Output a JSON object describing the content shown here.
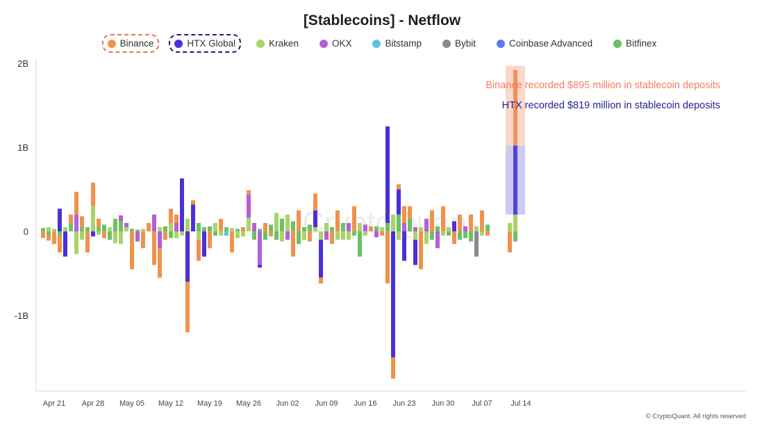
{
  "title": "[Stablecoins] - Netflow",
  "footer": "© CryptoQuant. All rights reserved",
  "watermark": "CryptoQuant",
  "legend": [
    {
      "name": "Binance",
      "color": "#f0924c",
      "highlight": true
    },
    {
      "name": "HTX Global",
      "color": "#4b2fd8",
      "highlight": true
    },
    {
      "name": "Kraken",
      "color": "#a8d468"
    },
    {
      "name": "OKX",
      "color": "#b45fd6"
    },
    {
      "name": "Bitstamp",
      "color": "#5bc3e0"
    },
    {
      "name": "Bybit",
      "color": "#8a8a8a"
    },
    {
      "name": "Coinbase Advanced",
      "color": "#5b7ee5"
    },
    {
      "name": "Bitfinex",
      "color": "#6cc064"
    }
  ],
  "annotations": [
    {
      "text": "Binance recorded $895 million in stablecoin deposits",
      "color": "#f07f5e"
    },
    {
      "text": "HTX recorded $819 million in stablecoin deposits",
      "color": "#23238f"
    }
  ],
  "chart_data": {
    "type": "bar",
    "stacked": true,
    "title": "[Stablecoins] - Netflow",
    "ylim": [
      -1.9,
      2.05
    ],
    "y_ticks": [
      {
        "value": 2,
        "label": "2B"
      },
      {
        "value": 1,
        "label": "1B"
      },
      {
        "value": 0,
        "label": "0"
      },
      {
        "value": -1,
        "label": "-1B"
      }
    ],
    "x_ticks": [
      "Apr 21",
      "Apr 28",
      "May 05",
      "May 12",
      "May 19",
      "May 26",
      "Jun 02",
      "Jun 09",
      "Jun 16",
      "Jun 23",
      "Jun 30",
      "Jul 07",
      "Jul 14"
    ],
    "series_order": [
      "Bitfinex",
      "Kraken",
      "OKX",
      "HTX Global",
      "Binance"
    ],
    "days": [
      {
        "d": "Apr 19",
        "Bitfinex": 0.04,
        "Binance": -0.08
      },
      {
        "d": "Apr 20",
        "Kraken": 0.05,
        "Bitfinex": -0.05,
        "Binance": -0.06
      },
      {
        "d": "Apr 21",
        "Kraken": 0.03,
        "Binance": -0.15
      },
      {
        "d": "Apr 22",
        "HTX Global": 0.27,
        "Bitfinex": -0.05,
        "Binance": -0.2
      },
      {
        "d": "Apr 23",
        "Kraken": 0.05,
        "HTX Global": -0.3
      },
      {
        "d": "Apr 24",
        "Bitfinex": 0.1,
        "Binance": 0.1
      },
      {
        "d": "Apr 25",
        "OKX": 0.2,
        "Binance": 0.27,
        "Kraken": -0.27
      },
      {
        "d": "Apr 26",
        "Bitfinex": 0.05,
        "Binance": 0.13,
        "Kraken": -0.1
      },
      {
        "d": "Apr 27",
        "Bitfinex": 0.05,
        "Binance": -0.25
      },
      {
        "d": "Apr 28",
        "Kraken": 0.3,
        "Binance": 0.28,
        "HTX Global": -0.06
      },
      {
        "d": "Apr 29",
        "Bitfinex": 0.05,
        "Binance": 0.1,
        "Kraken": -0.04
      },
      {
        "d": "Apr 30",
        "Bitfinex": 0.08,
        "Binance": -0.08
      },
      {
        "d": "May 01",
        "Kraken": 0.05,
        "Bitfinex": -0.1
      },
      {
        "d": "May 02",
        "Bitfinex": 0.15,
        "Kraken": -0.14
      },
      {
        "d": "May 03",
        "Bitfinex": 0.12,
        "OKX": 0.07,
        "Kraken": -0.15
      },
      {
        "d": "May 04",
        "Kraken": 0.05,
        "OKX": 0.05
      },
      {
        "d": "May 05",
        "Bitfinex": 0.03,
        "Binance": -0.45
      },
      {
        "d": "May 06",
        "Bitfinex": 0.02,
        "OKX": -0.12
      },
      {
        "d": "May 07",
        "Kraken": 0.03,
        "Binance": -0.2
      },
      {
        "d": "May 08",
        "Binance": 0.1
      },
      {
        "d": "May 09",
        "OKX": 0.2,
        "Binance": -0.4
      },
      {
        "d": "May 10",
        "Kraken": 0.05,
        "OKX": -0.2,
        "Binance": -0.35
      },
      {
        "d": "May 11",
        "Bitfinex": 0.06,
        "Binance": -0.1
      },
      {
        "d": "May 12",
        "Kraken": 0.1,
        "Binance": 0.17,
        "Bitfinex": -0.08
      },
      {
        "d": "May 13",
        "OKX": 0.1,
        "Binance": 0.1,
        "Kraken": -0.08
      },
      {
        "d": "May 14",
        "HTX Global": 0.63,
        "Kraken": -0.05
      },
      {
        "d": "May 15",
        "Kraken": 0.15,
        "HTX Global": -0.6,
        "Binance": -0.6
      },
      {
        "d": "May 16",
        "HTX Global": 0.32,
        "Binance": 0.05
      },
      {
        "d": "May 17",
        "Bitfinex": 0.1,
        "Kraken": -0.1,
        "Binance": -0.25
      },
      {
        "d": "May 18",
        "Bitfinex": 0.05,
        "HTX Global": -0.3
      },
      {
        "d": "May 19",
        "Bitfinex": 0.06,
        "Binance": -0.2
      },
      {
        "d": "May 20",
        "Kraken": 0.1,
        "Bitfinex": -0.05
      },
      {
        "d": "May 21",
        "Binance": 0.15,
        "Kraken": -0.05
      },
      {
        "d": "May 22",
        "Bitfinex": 0.05,
        "Bitstamp": -0.05
      },
      {
        "d": "May 23",
        "Kraken": 0.04,
        "Binance": -0.25
      },
      {
        "d": "May 24",
        "Bitfinex": 0.03,
        "Kraken": -0.08
      },
      {
        "d": "May 25",
        "Binance": 0.05,
        "Kraken": -0.06
      },
      {
        "d": "May 26",
        "OKX": 0.28,
        "Kraken": 0.16,
        "Binance": 0.05
      },
      {
        "d": "May 27",
        "OKX": 0.1,
        "Bitfinex": -0.1
      },
      {
        "d": "May 28",
        "Bitfinex": 0.03,
        "OKX": -0.4,
        "HTX Global": -0.03
      },
      {
        "d": "May 29",
        "Binance": 0.1,
        "Bitfinex": -0.1
      },
      {
        "d": "May 30",
        "Bitfinex": 0.08,
        "Binance": -0.06
      },
      {
        "d": "May 31",
        "Kraken": 0.22,
        "Bitfinex": -0.1
      },
      {
        "d": "Jun 01",
        "Bitfinex": 0.15,
        "Kraken": -0.12
      },
      {
        "d": "Jun 02",
        "Kraken": 0.2,
        "OKX": -0.1
      },
      {
        "d": "Jun 03",
        "Bitfinex": 0.12,
        "Binance": -0.3
      },
      {
        "d": "Jun 04",
        "Binance": 0.25,
        "Bitfinex": -0.15
      },
      {
        "d": "Jun 05",
        "Bitfinex": 0.05,
        "Kraken": -0.1
      },
      {
        "d": "Jun 06",
        "Bitfinex": 0.08,
        "Binance": -0.12
      },
      {
        "d": "Jun 07",
        "Kraken": 0.05,
        "HTX Global": 0.2,
        "Binance": 0.2
      },
      {
        "d": "Jun 08",
        "Kraken": -0.1,
        "HTX Global": -0.45,
        "Binance": -0.07
      },
      {
        "d": "Jun 09",
        "Kraken": 0.1,
        "OKX": -0.1
      },
      {
        "d": "Jun 10",
        "Bitfinex": 0.05,
        "Binance": -0.15
      },
      {
        "d": "Jun 11",
        "Binance": 0.25,
        "Kraken": -0.1
      },
      {
        "d": "Jun 12",
        "Bitfinex": 0.1,
        "Kraken": -0.1
      },
      {
        "d": "Jun 13",
        "OKX": 0.1,
        "Kraken": -0.1
      },
      {
        "d": "Jun 14",
        "Binance": 0.3,
        "Bitfinex": -0.05
      },
      {
        "d": "Jun 15",
        "Kraken": 0.1,
        "Bitfinex": -0.3
      },
      {
        "d": "Jun 16",
        "OKX": 0.08,
        "Kraken": -0.05
      },
      {
        "d": "Jun 17",
        "Binance": 0.06
      },
      {
        "d": "Jun 18",
        "Bitfinex": 0.06,
        "OKX": -0.07
      },
      {
        "d": "Jun 19",
        "Kraken": 0.05,
        "Binance": -0.05
      },
      {
        "d": "Jun 20",
        "Bitfinex": 0.1,
        "HTX Global": 1.15,
        "Binance": -0.62
      },
      {
        "d": "Jun 21",
        "Kraken": 0.2,
        "HTX Global": -1.5,
        "Binance": -0.25
      },
      {
        "d": "Jun 22",
        "Bitfinex": 0.2,
        "HTX Global": 0.3,
        "Binance": 0.06,
        "Kraken": -0.1
      },
      {
        "d": "Jun 23",
        "OKX": 0.1,
        "Binance": 0.2,
        "HTX Global": -0.35
      },
      {
        "d": "Jun 24",
        "Bitfinex": 0.15,
        "Binance": 0.15
      },
      {
        "d": "Jun 25",
        "OKX": 0.05,
        "Kraken": -0.1,
        "HTX Global": -0.3
      },
      {
        "d": "Jun 26",
        "Kraken": 0.05,
        "Binance": -0.45
      },
      {
        "d": "Jun 27",
        "OKX": 0.15,
        "Kraken": -0.15
      },
      {
        "d": "Jun 28",
        "Binance": 0.25,
        "Bitfinex": -0.1
      },
      {
        "d": "Jun 29",
        "Bitfinex": 0.06,
        "OKX": -0.2
      },
      {
        "d": "Jun 30",
        "Binance": 0.3,
        "Kraken": -0.05
      },
      {
        "d": "Jul 01",
        "Kraken": 0.05,
        "Bitfinex": -0.05
      },
      {
        "d": "Jul 02",
        "HTX Global": 0.12,
        "Binance": -0.15
      },
      {
        "d": "Jul 03",
        "Binance": 0.2,
        "Bitfinex": -0.1
      },
      {
        "d": "Jul 04",
        "OKX": 0.06,
        "Bitfinex": -0.08
      },
      {
        "d": "Jul 05",
        "Binance": 0.2,
        "Bitfinex": -0.12
      },
      {
        "d": "Jul 06",
        "Kraken": 0.06,
        "Bybit": -0.3
      },
      {
        "d": "Jul 07",
        "Binance": 0.25,
        "Kraken": -0.05
      },
      {
        "d": "Jul 08",
        "Bitfinex": 0.08,
        "Binance": -0.05
      },
      {
        "d": "Jul 12",
        "Kraken": 0.1,
        "Binance": -0.25
      },
      {
        "d": "Jul 13",
        "Kraken": 0.2,
        "HTX Global": 0.82,
        "Binance": 0.9,
        "Bitfinex": -0.12
      }
    ]
  }
}
